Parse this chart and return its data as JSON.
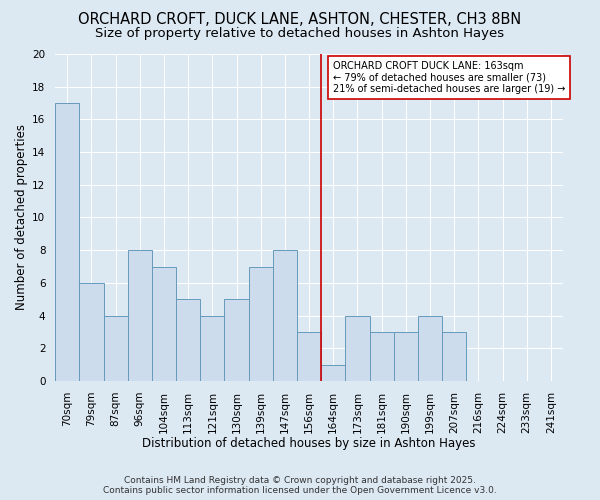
{
  "title": "ORCHARD CROFT, DUCK LANE, ASHTON, CHESTER, CH3 8BN",
  "subtitle": "Size of property relative to detached houses in Ashton Hayes",
  "xlabel": "Distribution of detached houses by size in Ashton Hayes",
  "ylabel": "Number of detached properties",
  "categories": [
    "70sqm",
    "79sqm",
    "87sqm",
    "96sqm",
    "104sqm",
    "113sqm",
    "121sqm",
    "130sqm",
    "139sqm",
    "147sqm",
    "156sqm",
    "164sqm",
    "173sqm",
    "181sqm",
    "190sqm",
    "199sqm",
    "207sqm",
    "216sqm",
    "224sqm",
    "233sqm",
    "241sqm"
  ],
  "values": [
    17,
    6,
    4,
    8,
    7,
    5,
    4,
    5,
    7,
    8,
    3,
    1,
    4,
    3,
    3,
    4,
    3,
    0,
    0,
    0,
    0
  ],
  "bar_color": "#ccdcec",
  "bar_edge_color": "#6699bb",
  "highlight_line_color": "#cc0000",
  "ylim": [
    0,
    20
  ],
  "yticks": [
    0,
    2,
    4,
    6,
    8,
    10,
    12,
    14,
    16,
    18,
    20
  ],
  "annotation_title": "ORCHARD CROFT DUCK LANE: 163sqm",
  "annotation_line1": "← 79% of detached houses are smaller (73)",
  "annotation_line2": "21% of semi-detached houses are larger (19) →",
  "annotation_box_color": "#ffffff",
  "annotation_box_edge": "#cc0000",
  "footer_line1": "Contains HM Land Registry data © Crown copyright and database right 2025.",
  "footer_line2": "Contains public sector information licensed under the Open Government Licence v3.0.",
  "background_color": "#dce8f2",
  "plot_background": "#dce8f2",
  "grid_color": "#ffffff",
  "title_fontsize": 10.5,
  "subtitle_fontsize": 9.5,
  "axis_label_fontsize": 8.5,
  "tick_fontsize": 7.5,
  "annotation_fontsize": 7,
  "footer_fontsize": 6.5
}
